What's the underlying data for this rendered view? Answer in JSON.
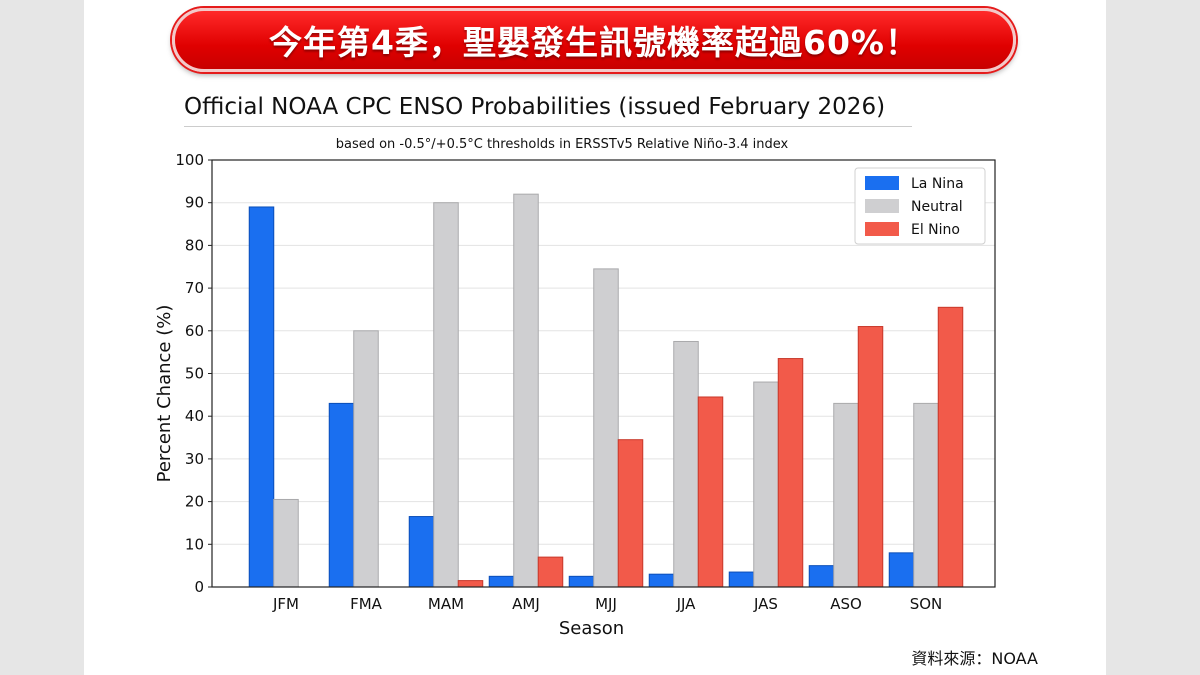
{
  "banner": {
    "text": "今年第4季，聖嬰發生訊號機率超過60%！"
  },
  "source": {
    "text": "資料來源：NOAA"
  },
  "chart_data": {
    "type": "bar",
    "title": "Official NOAA CPC ENSO Probabilities (issued February 2026)",
    "subtitle": "based on -0.5°/+0.5°C thresholds in ERSSTv5 Relative Niño-3.4 index",
    "xlabel": "Season",
    "ylabel": "Percent Chance (%)",
    "ylim": [
      0,
      100
    ],
    "yticks": [
      0,
      10,
      20,
      30,
      40,
      50,
      60,
      70,
      80,
      90,
      100
    ],
    "grid": true,
    "legend_position": "top-right",
    "categories": [
      "JFM",
      "FMA",
      "MAM",
      "AMJ",
      "MJJ",
      "JJA",
      "JAS",
      "ASO",
      "SON"
    ],
    "series": [
      {
        "name": "La Nina",
        "color": "#1a6ff0",
        "values": [
          89,
          43,
          16.5,
          2.5,
          2.5,
          3,
          3.5,
          5,
          8
        ]
      },
      {
        "name": "Neutral",
        "color": "#cfcfd1",
        "values": [
          20.5,
          60,
          90,
          92,
          74.5,
          57.5,
          48,
          43,
          43
        ]
      },
      {
        "name": "El Nino",
        "color": "#f25a4a",
        "values": [
          null,
          null,
          1.5,
          7,
          34.5,
          44.5,
          53.5,
          61,
          65.5
        ]
      }
    ]
  }
}
